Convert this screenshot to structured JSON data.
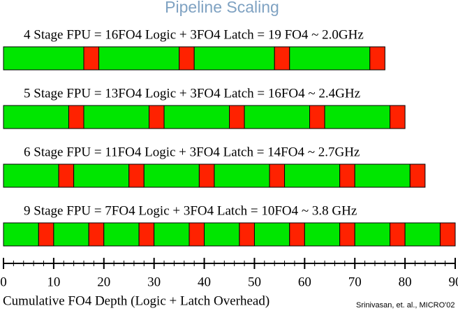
{
  "chart_data": {
    "type": "stacked-hbar",
    "title": "Pipeline Scaling",
    "xlabel": "Cumulative FO4 Depth (Logic + Latch Overhead)",
    "source": "Srinivasan, et. al., MICRO'02",
    "colors": [
      "#00e600",
      "#ff2200"
    ],
    "rows": [
      {
        "label": "4 Stage FPU = 16FO4 Logic + 3FO4 Latch = 19 FO4 ~ 2.0GHz",
        "values": [
          16,
          3,
          16,
          3,
          16,
          3,
          16,
          3
        ]
      },
      {
        "label": "5 Stage FPU = 13FO4 Logic + 3FO4 Latch = 16FO4 ~ 2.4GHz",
        "values": [
          13,
          3,
          13,
          3,
          13,
          3,
          13,
          3,
          13,
          3
        ]
      },
      {
        "label": "6 Stage FPU = 11FO4 Logic + 3FO4 Latch = 14FO4 ~ 2.7GHz",
        "values": [
          11,
          3,
          11,
          3,
          11,
          3,
          11,
          3,
          11,
          3,
          11,
          3
        ]
      },
      {
        "label": "9 Stage FPU = 7FO4 Logic + 3FO4 Latch = 10FO4 ~ 3.8 GHz",
        "values": [
          7,
          3,
          7,
          3,
          7,
          3,
          7,
          3,
          7,
          3,
          7,
          3,
          7,
          3,
          7,
          3,
          7,
          3
        ]
      }
    ],
    "xlim": [
      0,
      90
    ],
    "xticks": [
      0,
      10,
      20,
      30,
      40,
      50,
      60,
      70,
      80,
      90
    ],
    "xminorticks": [
      2,
      4,
      6,
      8,
      12,
      14,
      16,
      18,
      22,
      24,
      26,
      28,
      32,
      34,
      36,
      38,
      42,
      44,
      46,
      48,
      52,
      54,
      56,
      58,
      62,
      64,
      66,
      68,
      72,
      74,
      76,
      78,
      82,
      84,
      86,
      88
    ]
  }
}
